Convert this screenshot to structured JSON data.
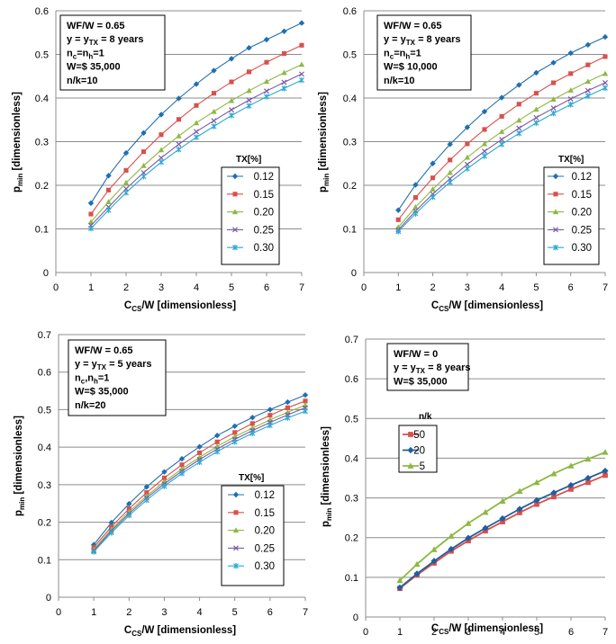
{
  "chart_data": [
    {
      "type": "line",
      "info": [
        {
          "main": "WF/W = 0.65"
        },
        {
          "main": "y = y",
          "sub": "TX",
          "after": " = 8 years"
        },
        {
          "main": "n",
          "sub": "c",
          "after": "=n",
          "sub2": "h",
          "after2": "=1"
        },
        {
          "main": "W=$ 35,000"
        },
        {
          "main": "n/k=10"
        }
      ],
      "ylabel": {
        "main": "p",
        "sub": "min",
        "after": " [dimensionless]"
      },
      "xlabel": {
        "main": "C",
        "sub": "CS",
        "after": "/W [dimensionless]"
      },
      "ylim": [
        0,
        0.6
      ],
      "yticks": [
        "0",
        "0.1",
        "0.2",
        "0.3",
        "0.4",
        "0.5",
        "0.6"
      ],
      "xlim": [
        0,
        7
      ],
      "xticks": [
        "0",
        "1",
        "2",
        "3",
        "4",
        "5",
        "6",
        "7"
      ],
      "legend_title": "TX[%]",
      "x": [
        1,
        1.5,
        2,
        2.5,
        3,
        3.5,
        4,
        4.5,
        5,
        5.5,
        6,
        6.5,
        7
      ],
      "series": [
        {
          "name": "0.12",
          "values": [
            0.159,
            0.222,
            0.274,
            0.32,
            0.362,
            0.399,
            0.432,
            0.463,
            0.49,
            0.515,
            0.534,
            0.553,
            0.572
          ]
        },
        {
          "name": "0.15",
          "values": [
            0.134,
            0.189,
            0.234,
            0.277,
            0.316,
            0.351,
            0.383,
            0.411,
            0.437,
            0.46,
            0.482,
            0.502,
            0.521
          ]
        },
        {
          "name": "0.20",
          "values": [
            0.116,
            0.162,
            0.206,
            0.245,
            0.281,
            0.313,
            0.343,
            0.369,
            0.394,
            0.417,
            0.438,
            0.458,
            0.477
          ]
        },
        {
          "name": "0.25",
          "values": [
            0.108,
            0.15,
            0.192,
            0.229,
            0.263,
            0.294,
            0.323,
            0.348,
            0.373,
            0.395,
            0.416,
            0.436,
            0.455
          ]
        },
        {
          "name": "0.30",
          "values": [
            0.101,
            0.143,
            0.183,
            0.22,
            0.253,
            0.282,
            0.31,
            0.335,
            0.36,
            0.382,
            0.403,
            0.422,
            0.441
          ]
        }
      ]
    },
    {
      "type": "line",
      "info": [
        {
          "main": "WF/W = 0.65"
        },
        {
          "main": "y = y",
          "sub": "TX",
          "after": " = 8 years"
        },
        {
          "main": "n",
          "sub": "c",
          "after": "=n",
          "sub2": "h",
          "after2": "=1"
        },
        {
          "main": "W=$ 10,000"
        },
        {
          "main": "n/k=10"
        }
      ],
      "ylabel": {
        "main": "p",
        "sub": "min",
        "after": " [dimensionless]"
      },
      "xlabel": {
        "main": "C",
        "sub": "CS",
        "after": "/W [dimensionless]"
      },
      "ylim": [
        0,
        0.6
      ],
      "yticks": [
        "0",
        "0.1",
        "0.2",
        "0.3",
        "0.4",
        "0.5",
        "0.6"
      ],
      "xlim": [
        0,
        7
      ],
      "xticks": [
        "0",
        "1",
        "2",
        "3",
        "4",
        "5",
        "6",
        "7"
      ],
      "legend_title": "TX[%]",
      "x": [
        1,
        1.5,
        2,
        2.5,
        3,
        3.5,
        4,
        4.5,
        5,
        5.5,
        6,
        6.5,
        7
      ],
      "series": [
        {
          "name": "0.12",
          "values": [
            0.143,
            0.201,
            0.25,
            0.294,
            0.333,
            0.369,
            0.401,
            0.43,
            0.458,
            0.481,
            0.503,
            0.522,
            0.54
          ]
        },
        {
          "name": "0.15",
          "values": [
            0.121,
            0.172,
            0.217,
            0.258,
            0.295,
            0.328,
            0.358,
            0.386,
            0.411,
            0.435,
            0.456,
            0.476,
            0.495
          ]
        },
        {
          "name": "0.20",
          "values": [
            0.104,
            0.15,
            0.191,
            0.229,
            0.264,
            0.295,
            0.323,
            0.349,
            0.374,
            0.397,
            0.418,
            0.438,
            0.456
          ]
        },
        {
          "name": "0.25",
          "values": [
            0.098,
            0.141,
            0.18,
            0.215,
            0.248,
            0.278,
            0.305,
            0.331,
            0.355,
            0.377,
            0.398,
            0.417,
            0.435
          ]
        },
        {
          "name": "0.30",
          "values": [
            0.094,
            0.135,
            0.173,
            0.207,
            0.238,
            0.267,
            0.294,
            0.319,
            0.343,
            0.365,
            0.385,
            0.405,
            0.423
          ]
        }
      ]
    },
    {
      "type": "line",
      "info": [
        {
          "main": "WF/W = 0.65"
        },
        {
          "main": "y = y",
          "sub": "TX",
          "after": " = 5 years"
        },
        {
          "main": "n",
          "sub": "c",
          "after": ",n",
          "sub2": "h",
          "after2": "=1"
        },
        {
          "main": "W=$ 35,000"
        },
        {
          "main": "n/k=20"
        }
      ],
      "ylabel": {
        "main": "p",
        "sub": "min",
        "after": " [dimensionless]"
      },
      "xlabel": {
        "main": "C",
        "sub": "CS",
        "after": "/W [dimensionless]"
      },
      "ylim": [
        0,
        0.7
      ],
      "yticks": [
        "0",
        "0.1",
        "0.2",
        "0.3",
        "0.4",
        "0.5",
        "0.6",
        "0.7"
      ],
      "xlim": [
        0,
        7
      ],
      "xticks": [
        "0",
        "1",
        "2",
        "3",
        "4",
        "5",
        "6",
        "7"
      ],
      "legend_title": "TX[%]",
      "x": [
        1,
        1.5,
        2,
        2.5,
        3,
        3.5,
        4,
        4.5,
        5,
        5.5,
        6,
        6.5,
        7
      ],
      "series": [
        {
          "name": "0.12",
          "values": [
            0.14,
            0.199,
            0.249,
            0.294,
            0.334,
            0.369,
            0.401,
            0.431,
            0.456,
            0.479,
            0.5,
            0.52,
            0.539
          ]
        },
        {
          "name": "0.15",
          "values": [
            0.133,
            0.188,
            0.236,
            0.279,
            0.318,
            0.353,
            0.385,
            0.414,
            0.439,
            0.463,
            0.485,
            0.505,
            0.523
          ]
        },
        {
          "name": "0.20",
          "values": [
            0.127,
            0.181,
            0.228,
            0.27,
            0.308,
            0.342,
            0.373,
            0.402,
            0.428,
            0.451,
            0.473,
            0.493,
            0.512
          ]
        },
        {
          "name": "0.25",
          "values": [
            0.124,
            0.177,
            0.223,
            0.265,
            0.302,
            0.336,
            0.367,
            0.395,
            0.421,
            0.444,
            0.466,
            0.486,
            0.505
          ]
        },
        {
          "name": "0.30",
          "values": [
            0.121,
            0.172,
            0.218,
            0.259,
            0.296,
            0.33,
            0.36,
            0.388,
            0.414,
            0.437,
            0.458,
            0.478,
            0.496
          ]
        }
      ]
    },
    {
      "type": "line",
      "info": [
        {
          "main": "WF/W = 0"
        },
        {
          "main": "y = y",
          "sub": "TX",
          "after": " = 8 years"
        },
        {
          "main": "W=$ 35,000"
        }
      ],
      "ylabel": {
        "main": "p",
        "sub": "min",
        "after": " [dimensionless]"
      },
      "xlabel": {
        "main": "C",
        "sub": "CS",
        "after": "/W [dimensionless]"
      },
      "ylim": [
        0,
        0.7
      ],
      "yticks": [
        "0",
        "0.1",
        "0.2",
        "0.3",
        "0.4",
        "0.5",
        "0.6",
        "0.7"
      ],
      "xlim": [
        0,
        7
      ],
      "xticks": [
        "0",
        "1",
        "2",
        "3",
        "4",
        "5",
        "6",
        "7"
      ],
      "legend_title": "n/k",
      "x": [
        1,
        1.5,
        2,
        2.5,
        3,
        3.5,
        4,
        4.5,
        5,
        5.5,
        6,
        6.5,
        7
      ],
      "series": [
        {
          "name": "50",
          "values": [
            0.072,
            0.106,
            0.136,
            0.166,
            0.192,
            0.217,
            0.24,
            0.263,
            0.284,
            0.303,
            0.322,
            0.339,
            0.357
          ]
        },
        {
          "name": "20",
          "values": [
            0.074,
            0.109,
            0.141,
            0.171,
            0.199,
            0.224,
            0.248,
            0.272,
            0.294,
            0.313,
            0.332,
            0.35,
            0.368
          ]
        },
        {
          "name": "5",
          "values": [
            0.092,
            0.133,
            0.17,
            0.204,
            0.236,
            0.264,
            0.292,
            0.317,
            0.339,
            0.361,
            0.381,
            0.398,
            0.415
          ]
        }
      ]
    }
  ],
  "styles": {
    "tx_series": [
      {
        "color": "#1f6fb0",
        "marker": "diamond"
      },
      {
        "color": "#d9504c",
        "marker": "square"
      },
      {
        "color": "#8eb842",
        "marker": "triangle"
      },
      {
        "color": "#7b5aa6",
        "marker": "x"
      },
      {
        "color": "#2aa9d4",
        "marker": "star"
      }
    ],
    "nk_series": [
      {
        "color": "#d9504c",
        "marker": "square"
      },
      {
        "color": "#1f5f9e",
        "marker": "diamond"
      },
      {
        "color": "#8eb842",
        "marker": "triangle"
      }
    ]
  }
}
